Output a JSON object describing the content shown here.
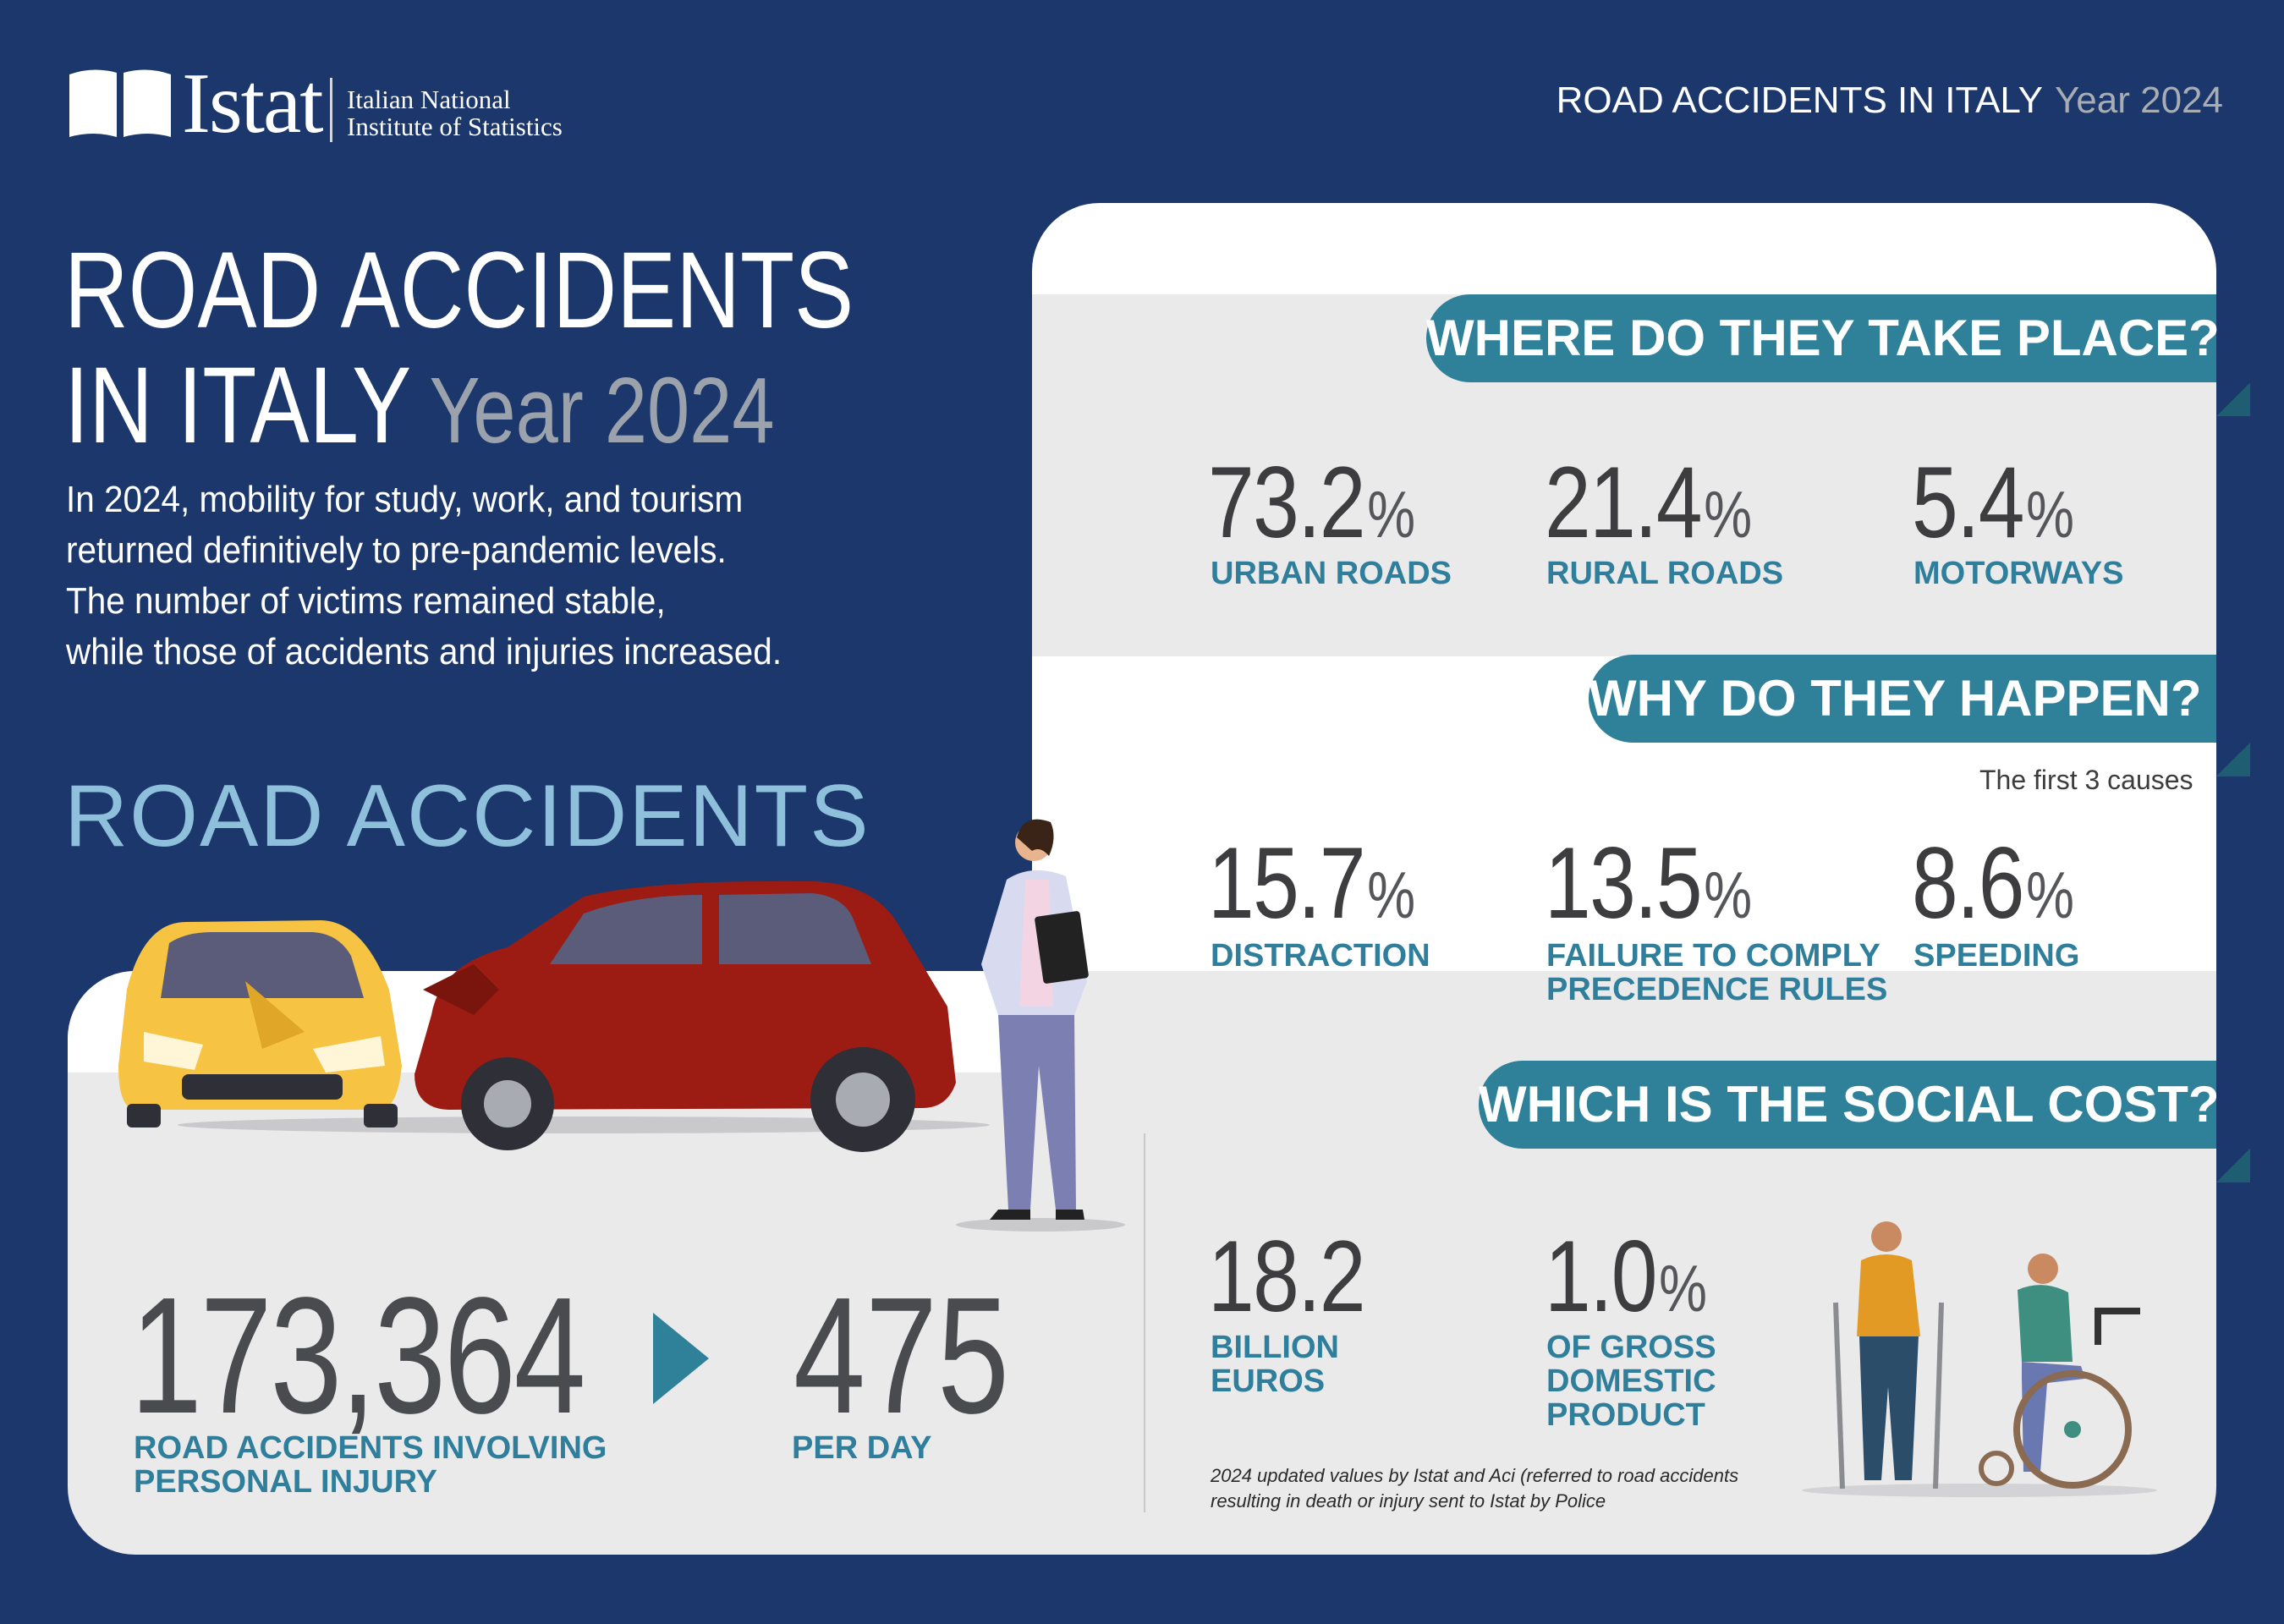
{
  "header": {
    "logo_word": "Istat",
    "logo_sub_1": "Italian National",
    "logo_sub_2": "Institute of Statistics",
    "top_right_title": "ROAD ACCIDENTS IN ITALY",
    "top_right_year": "Year 2024"
  },
  "title": {
    "line1": "ROAD ACCIDENTS",
    "line2": "IN ITALY",
    "year": "Year 2024"
  },
  "intro": [
    "In 2024, mobility for study, work, and tourism",
    "returned definitively to pre-pandemic levels.",
    "The number of victims remained stable,",
    "while those of accidents and injuries increased."
  ],
  "road_accidents": {
    "heading": "ROAD ACCIDENTS",
    "total_value": "173,364",
    "total_label_1": "ROAD ACCIDENTS INVOLVING",
    "total_label_2": "PERSONAL INJURY",
    "per_day_value": "475",
    "per_day_label": "PER DAY"
  },
  "where": {
    "heading": "WHERE DO THEY TAKE PLACE?",
    "items": [
      {
        "value": "73.2",
        "unit": "%",
        "label": "URBAN ROADS"
      },
      {
        "value": "21.4",
        "unit": "%",
        "label": "RURAL ROADS"
      },
      {
        "value": "5.4",
        "unit": "%",
        "label": "MOTORWAYS"
      }
    ]
  },
  "why": {
    "heading": "WHY DO THEY HAPPEN?",
    "subheading": "The first 3 causes",
    "items": [
      {
        "value": "15.7",
        "unit": "%",
        "label": "DISTRACTION"
      },
      {
        "value": "13.5",
        "unit": "%",
        "label_1": "FAILURE TO COMPLY",
        "label_2": "PRECEDENCE RULES"
      },
      {
        "value": "8.6",
        "unit": "%",
        "label": "SPEEDING"
      }
    ]
  },
  "cost": {
    "heading": "WHICH IS THE SOCIAL COST?",
    "items": [
      {
        "value": "18.2",
        "label_1": "BILLION",
        "label_2": "EUROS"
      },
      {
        "value": "1.0",
        "unit": "%",
        "label_1": "OF GROSS",
        "label_2": "DOMESTIC",
        "label_3": "PRODUCT"
      }
    ],
    "note_1": "2024 updated values by Istat and Aci (referred to road accidents",
    "note_2": "resulting in death or injury sent to Istat by Police"
  },
  "colors": {
    "background": "#1b376c",
    "accent_teal": "#2f8099",
    "label_blue": "#2f7f9c",
    "heading_light_blue": "#8ec0dc",
    "panel_grey": "#eaeaeb"
  }
}
